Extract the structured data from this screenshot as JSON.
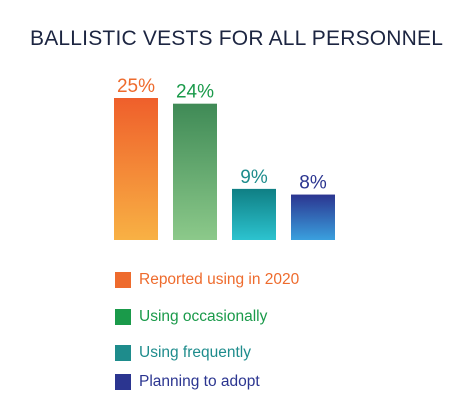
{
  "chart_data": {
    "type": "bar",
    "title": "BALLISTIC VESTS FOR ALL PERSONNEL",
    "categories": [
      "Reported using in 2020",
      "Using occasionally",
      "Using frequently",
      "Planning to adopt"
    ],
    "values": [
      25,
      24,
      9,
      8
    ],
    "data_labels": [
      "25%",
      "24%",
      "9%",
      "8%"
    ],
    "colors": [
      "#ee6b2d",
      "#1a9a4a",
      "#1e8c8c",
      "#2b3590"
    ],
    "gradients": [
      [
        "#ef5f2b",
        "#f8b144"
      ],
      [
        "#3f8a56",
        "#8cc98a"
      ],
      [
        "#0f7f84",
        "#2cc3cf"
      ],
      [
        "#2b3590",
        "#3aa0de"
      ]
    ],
    "ylim": [
      0,
      25
    ],
    "grid": false,
    "legend_position": "bottom-left"
  }
}
